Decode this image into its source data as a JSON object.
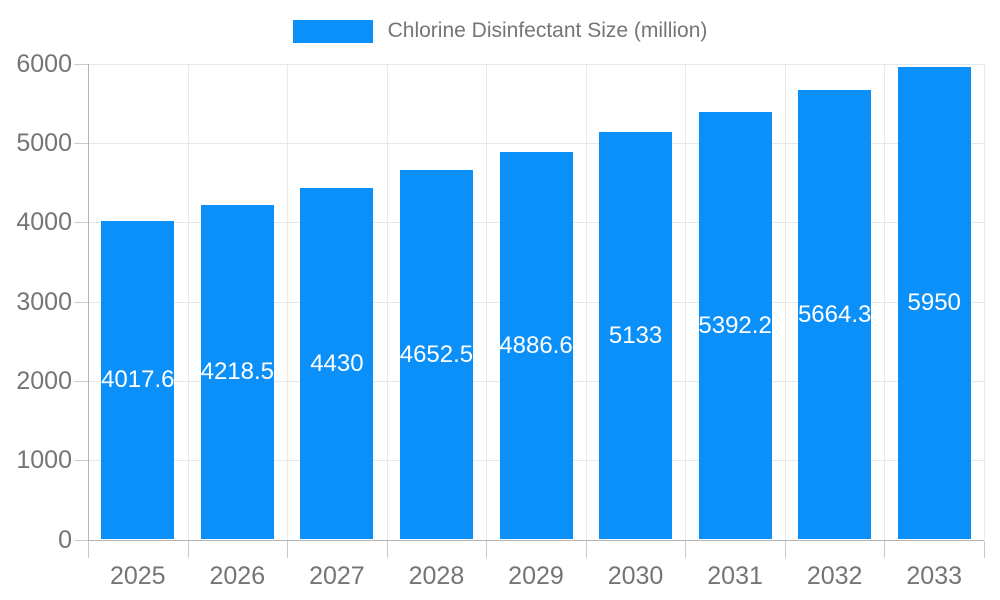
{
  "legend": {
    "label": "Chlorine Disinfectant Size (million)"
  },
  "chart_data": {
    "type": "bar",
    "title": "Chlorine Disinfectant Size (million)",
    "categories": [
      "2025",
      "2026",
      "2027",
      "2028",
      "2029",
      "2030",
      "2031",
      "2032",
      "2033"
    ],
    "values": [
      4017.6,
      4218.5,
      4430,
      4652.5,
      4886.6,
      5133,
      5392.2,
      5664.3,
      5950
    ],
    "xlabel": "",
    "ylabel": "",
    "ylim": [
      0,
      6000
    ],
    "yticks": [
      0,
      1000,
      2000,
      3000,
      4000,
      5000,
      6000
    ],
    "grid": true,
    "legend_position": "top",
    "bar_color": "#0b90f9",
    "value_label_color": "#ffffff",
    "axis_text_color": "#757575"
  }
}
